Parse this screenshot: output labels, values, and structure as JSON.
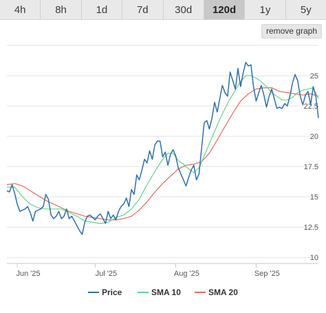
{
  "range_tabs": [
    {
      "label": "4h",
      "active": false
    },
    {
      "label": "8h",
      "active": false
    },
    {
      "label": "1d",
      "active": false
    },
    {
      "label": "7d",
      "active": false
    },
    {
      "label": "30d",
      "active": false
    },
    {
      "label": "120d",
      "active": true
    },
    {
      "label": "1y",
      "active": false
    },
    {
      "label": "5y",
      "active": false
    }
  ],
  "remove_graph_label": "remove graph",
  "chart_data": {
    "type": "line",
    "x_labels": [
      "Jun '25",
      "Jul '25",
      "Aug '25",
      "Sep '25"
    ],
    "x_label_days": [
      4,
      34,
      65,
      96
    ],
    "y_ticks": [
      10,
      12.5,
      15,
      17.5,
      20,
      22.5,
      25
    ],
    "ylim": [
      9.5,
      27.5
    ],
    "xlim": [
      0,
      120
    ],
    "grid": true,
    "legend_position": "bottom",
    "series": [
      {
        "name": "Price",
        "color": "#2f6ea5",
        "points": [
          [
            0,
            15.5
          ],
          [
            1,
            15.4
          ],
          [
            2,
            16.0
          ],
          [
            3,
            15.3
          ],
          [
            4,
            14.4
          ],
          [
            5,
            13.8
          ],
          [
            6,
            13.9
          ],
          [
            7,
            14.0
          ],
          [
            8,
            14.2
          ],
          [
            9,
            13.7
          ],
          [
            10,
            13.0
          ],
          [
            11,
            13.8
          ],
          [
            12,
            13.9
          ],
          [
            13,
            14.0
          ],
          [
            14,
            14.2
          ],
          [
            15,
            15.2
          ],
          [
            16,
            14.8
          ],
          [
            17,
            13.5
          ],
          [
            18,
            13.2
          ],
          [
            19,
            13.4
          ],
          [
            20,
            13.8
          ],
          [
            21,
            13.2
          ],
          [
            22,
            13.4
          ],
          [
            23,
            14.0
          ],
          [
            24,
            13.2
          ],
          [
            25,
            13.4
          ],
          [
            26,
            13.0
          ],
          [
            27,
            12.6
          ],
          [
            28,
            12.2
          ],
          [
            29,
            11.9
          ],
          [
            30,
            12.9
          ],
          [
            31,
            13.4
          ],
          [
            32,
            13.5
          ],
          [
            33,
            13.3
          ],
          [
            34,
            13.1
          ],
          [
            35,
            13.4
          ],
          [
            36,
            13.6
          ],
          [
            37,
            13.2
          ],
          [
            38,
            12.8
          ],
          [
            39,
            13.8
          ],
          [
            40,
            13.2
          ],
          [
            41,
            13.5
          ],
          [
            42,
            13.1
          ],
          [
            43,
            13.8
          ],
          [
            44,
            14.2
          ],
          [
            45,
            14.4
          ],
          [
            46,
            14.9
          ],
          [
            47,
            14.2
          ],
          [
            48,
            15.6
          ],
          [
            49,
            15.2
          ],
          [
            50,
            16.8
          ],
          [
            51,
            16.4
          ],
          [
            52,
            17.2
          ],
          [
            53,
            18.1
          ],
          [
            54,
            17.8
          ],
          [
            55,
            18.8
          ],
          [
            56,
            18.1
          ],
          [
            57,
            19.3
          ],
          [
            58,
            19.6
          ],
          [
            59,
            19.6
          ],
          [
            60,
            18.3
          ],
          [
            61,
            18.7
          ],
          [
            62,
            17.6
          ],
          [
            63,
            18.5
          ],
          [
            64,
            18.9
          ],
          [
            65,
            18.4
          ],
          [
            66,
            17.4
          ],
          [
            67,
            16.9
          ],
          [
            68,
            16.4
          ],
          [
            69,
            15.9
          ],
          [
            70,
            16.6
          ],
          [
            71,
            17.2
          ],
          [
            72,
            17.6
          ],
          [
            73,
            16.4
          ],
          [
            74,
            16.9
          ],
          [
            75,
            19.0
          ],
          [
            76,
            21.1
          ],
          [
            77,
            21.3
          ],
          [
            78,
            20.6
          ],
          [
            79,
            21.5
          ],
          [
            80,
            22.8
          ],
          [
            81,
            22.0
          ],
          [
            82,
            23.1
          ],
          [
            83,
            24.2
          ],
          [
            84,
            23.6
          ],
          [
            85,
            23.3
          ],
          [
            86,
            25.3
          ],
          [
            87,
            24.6
          ],
          [
            88,
            23.9
          ],
          [
            89,
            25.6
          ],
          [
            90,
            24.1
          ],
          [
            91,
            25.2
          ],
          [
            92,
            26.1
          ],
          [
            93,
            25.8
          ],
          [
            94,
            25.9
          ],
          [
            95,
            24.1
          ],
          [
            96,
            22.9
          ],
          [
            97,
            23.6
          ],
          [
            98,
            24.2
          ],
          [
            99,
            23.4
          ],
          [
            100,
            22.4
          ],
          [
            101,
            23.3
          ],
          [
            102,
            23.9
          ],
          [
            103,
            23.1
          ],
          [
            104,
            22.3
          ],
          [
            105,
            22.4
          ],
          [
            106,
            22.3
          ],
          [
            107,
            22.7
          ],
          [
            108,
            22.5
          ],
          [
            109,
            23.3
          ],
          [
            110,
            24.4
          ],
          [
            111,
            25.1
          ],
          [
            112,
            24.6
          ],
          [
            113,
            23.3
          ],
          [
            114,
            22.6
          ],
          [
            115,
            23.4
          ],
          [
            116,
            23.7
          ],
          [
            117,
            22.6
          ],
          [
            118,
            24.1
          ],
          [
            119,
            23.3
          ],
          [
            120,
            21.5
          ]
        ]
      },
      {
        "name": "SMA 10",
        "color": "#6ccf8a",
        "points": [
          [
            0,
            15.8
          ],
          [
            3,
            15.8
          ],
          [
            6,
            15.0
          ],
          [
            9,
            14.4
          ],
          [
            12,
            14.1
          ],
          [
            15,
            14.0
          ],
          [
            18,
            14.0
          ],
          [
            21,
            14.0
          ],
          [
            24,
            13.7
          ],
          [
            27,
            13.4
          ],
          [
            30,
            13.0
          ],
          [
            33,
            12.9
          ],
          [
            36,
            12.8
          ],
          [
            39,
            12.9
          ],
          [
            42,
            13.3
          ],
          [
            45,
            13.5
          ],
          [
            48,
            14.0
          ],
          [
            51,
            14.8
          ],
          [
            54,
            16.0
          ],
          [
            57,
            17.1
          ],
          [
            60,
            18.1
          ],
          [
            62,
            18.6
          ],
          [
            64,
            18.6
          ],
          [
            66,
            18.0
          ],
          [
            68,
            17.7
          ],
          [
            70,
            17.3
          ],
          [
            72,
            17.0
          ],
          [
            74,
            17.4
          ],
          [
            76,
            18.4
          ],
          [
            78,
            19.4
          ],
          [
            80,
            20.4
          ],
          [
            82,
            21.4
          ],
          [
            84,
            22.3
          ],
          [
            86,
            23.1
          ],
          [
            88,
            23.8
          ],
          [
            90,
            24.5
          ],
          [
            92,
            25.0
          ],
          [
            94,
            25.0
          ],
          [
            96,
            24.8
          ],
          [
            98,
            24.5
          ],
          [
            100,
            24.1
          ],
          [
            102,
            23.6
          ],
          [
            104,
            23.3
          ],
          [
            106,
            23.0
          ],
          [
            108,
            23.0
          ],
          [
            110,
            23.2
          ],
          [
            112,
            23.6
          ],
          [
            114,
            23.8
          ],
          [
            116,
            23.9
          ],
          [
            118,
            24.0
          ],
          [
            120,
            23.1
          ]
        ]
      },
      {
        "name": "SMA 20",
        "color": "#e06a5c",
        "points": [
          [
            0,
            16.0
          ],
          [
            3,
            16.1
          ],
          [
            6,
            15.9
          ],
          [
            9,
            15.5
          ],
          [
            12,
            15.1
          ],
          [
            15,
            14.7
          ],
          [
            18,
            14.4
          ],
          [
            21,
            14.1
          ],
          [
            24,
            13.8
          ],
          [
            27,
            13.6
          ],
          [
            30,
            13.4
          ],
          [
            33,
            13.3
          ],
          [
            36,
            13.2
          ],
          [
            39,
            13.1
          ],
          [
            42,
            13.1
          ],
          [
            45,
            13.2
          ],
          [
            48,
            13.4
          ],
          [
            51,
            13.9
          ],
          [
            54,
            14.6
          ],
          [
            57,
            15.4
          ],
          [
            60,
            16.1
          ],
          [
            63,
            16.7
          ],
          [
            66,
            17.3
          ],
          [
            69,
            17.6
          ],
          [
            72,
            17.7
          ],
          [
            75,
            17.9
          ],
          [
            78,
            18.6
          ],
          [
            81,
            19.7
          ],
          [
            84,
            20.8
          ],
          [
            87,
            21.9
          ],
          [
            90,
            22.9
          ],
          [
            93,
            23.5
          ],
          [
            96,
            23.9
          ],
          [
            99,
            24.0
          ],
          [
            102,
            24.0
          ],
          [
            105,
            23.7
          ],
          [
            108,
            23.6
          ],
          [
            111,
            23.5
          ],
          [
            114,
            23.4
          ],
          [
            117,
            23.5
          ],
          [
            120,
            23.3
          ]
        ]
      }
    ]
  }
}
